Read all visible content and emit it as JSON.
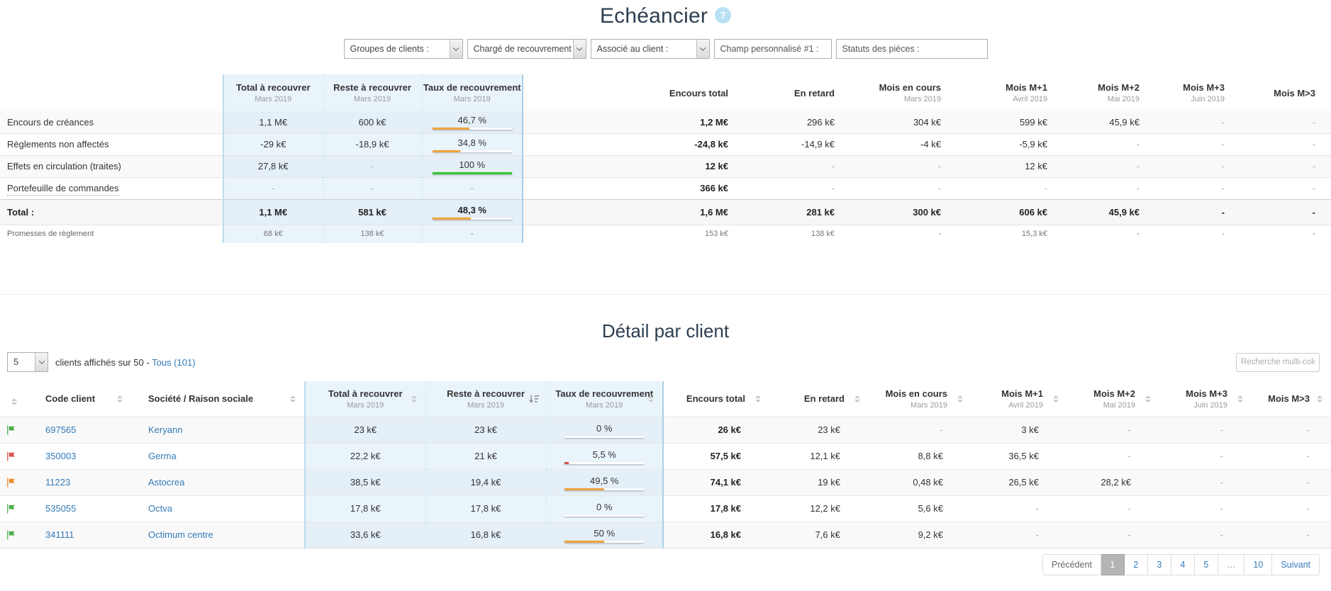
{
  "hdr": {
    "title": "Echéancier",
    "help": "?"
  },
  "filters": {
    "groupes_label": "Groupes de clients :",
    "charge_label": "Chargé de recouvrement :",
    "associe_label": "Associé au client :",
    "champ_placeholder": "Champ personnalisé #1 :",
    "statuts_placeholder": "Statuts des pièces :"
  },
  "colors": {
    "accent_blue": "#337ab7",
    "zone_blue": "#eaf4fb",
    "orange": "#f0a23c",
    "green": "#31c831",
    "red": "#d9534f"
  },
  "sum": {
    "columns": [
      {
        "label": "Total à recouvrer",
        "sub": "Mars 2019"
      },
      {
        "label": "Reste à recouvrer",
        "sub": "Mars 2019"
      },
      {
        "label": "Taux de recouvrement",
        "sub": "Mars 2019"
      },
      {
        "label": "Encours total",
        "sub": ""
      },
      {
        "label": "En retard",
        "sub": ""
      },
      {
        "label": "Mois en cours",
        "sub": "Mars 2019"
      },
      {
        "label": "Mois M+1",
        "sub": "Avril 2019"
      },
      {
        "label": "Mois M+2",
        "sub": "Mai 2019"
      },
      {
        "label": "Mois M+3",
        "sub": "Juin 2019"
      },
      {
        "label": "Mois M>3",
        "sub": ""
      }
    ],
    "rows": [
      {
        "label": "Encours de créances",
        "total": "1,1 M€",
        "reste": "600 k€",
        "taux": "46,7 %",
        "taux_pct": 46.7,
        "taux_color": "#f0a23c",
        "encours": "1,2 M€",
        "retard": "296 k€",
        "m0": "304 k€",
        "m1": "599 k€",
        "m2": "45,9 k€",
        "m3": "-",
        "m4": "-"
      },
      {
        "label": "Règlements non affectés",
        "total": "-29 k€",
        "reste": "-18,9 k€",
        "taux": "34,8 %",
        "taux_pct": 34.8,
        "taux_color": "#f0a23c",
        "encours": "-24,8 k€",
        "retard": "-14,9 k€",
        "m0": "-4 k€",
        "m1": "-5,9 k€",
        "m2": "-",
        "m3": "-",
        "m4": "-"
      },
      {
        "label": "Effets en circulation (traites)",
        "total": "27,8 k€",
        "reste": "-",
        "taux": "100 %",
        "taux_pct": 100,
        "taux_color": "#31c831",
        "encours": "12 k€",
        "retard": "-",
        "m0": "-",
        "m1": "12 k€",
        "m2": "-",
        "m3": "-",
        "m4": "-"
      },
      {
        "label": "Portefeuille de commandes",
        "total": "-",
        "reste": "-",
        "taux": "-",
        "encours": "366 k€",
        "retard": "-",
        "m0": "-",
        "m1": "-",
        "m2": "-",
        "m3": "-",
        "m4": "-"
      }
    ],
    "total_row": {
      "label": "Total :",
      "total": "1,1 M€",
      "reste": "581 k€",
      "taux": "48,3 %",
      "taux_pct": 48.3,
      "taux_color": "#f0a23c",
      "encours": "1,6 M€",
      "retard": "281 k€",
      "m0": "300 k€",
      "m1": "606 k€",
      "m2": "45,9 k€",
      "m3": "-",
      "m4": "-"
    },
    "promesses_row": {
      "label": "Promesses de règlement",
      "total": "68 k€",
      "reste": "138 k€",
      "taux": "-",
      "encours": "153 k€",
      "retard": "138 k€",
      "m0": "-",
      "m1": "15,3 k€",
      "m2": "-",
      "m3": "-",
      "m4": "-"
    }
  },
  "det": {
    "title": "Détail par client",
    "page_size": "5",
    "shown_prefix": "clients affichés sur 50 -",
    "all_link": "Tous (101)",
    "search_placeholder": "Recherche multi-colonnes",
    "columns": [
      {
        "label": "Code client",
        "sub": ""
      },
      {
        "label": "Société / Raison sociale",
        "sub": ""
      },
      {
        "label": "Total à recouvrer",
        "sub": "Mars 2019"
      },
      {
        "label": "Reste à recouvrer",
        "sub": "Mars 2019"
      },
      {
        "label": "Taux de recouvrement",
        "sub": "Mars 2019"
      },
      {
        "label": "Encours total",
        "sub": ""
      },
      {
        "label": "En retard",
        "sub": ""
      },
      {
        "label": "Mois en cours",
        "sub": "Mars 2019"
      },
      {
        "label": "Mois M+1",
        "sub": "Avril 2019"
      },
      {
        "label": "Mois M+2",
        "sub": "Mai 2019"
      },
      {
        "label": "Mois M+3",
        "sub": "Juin 2019"
      },
      {
        "label": "Mois M>3",
        "sub": ""
      }
    ],
    "rows": [
      {
        "flag_color": "#4cae4c",
        "code": "697565",
        "name": "Keryann",
        "total": "23 k€",
        "reste": "23 k€",
        "taux": "0 %",
        "taux_pct": 0,
        "taux_color": "#f0a23c",
        "encours": "26 k€",
        "retard": "23 k€",
        "m0": "-",
        "m1": "3 k€",
        "m2": "-",
        "m3": "-",
        "m4": "-"
      },
      {
        "flag_color": "#d9534f",
        "code": "350003",
        "name": "Germa",
        "total": "22,2 k€",
        "reste": "21 k€",
        "taux": "5,5 %",
        "taux_pct": 5.5,
        "taux_color": "#d9534f",
        "encours": "57,5 k€",
        "retard": "12,1 k€",
        "m0": "8,8 k€",
        "m1": "36,5 k€",
        "m2": "-",
        "m3": "-",
        "m4": "-"
      },
      {
        "flag_color": "#ed8b2d",
        "code": "11223",
        "name": "Astocrea",
        "total": "38,5 k€",
        "reste": "19,4 k€",
        "taux": "49,5 %",
        "taux_pct": 49.5,
        "taux_color": "#f0a23c",
        "encours": "74,1 k€",
        "retard": "19 k€",
        "m0": "0,48 k€",
        "m1": "26,5 k€",
        "m2": "28,2 k€",
        "m3": "-",
        "m4": "-"
      },
      {
        "flag_color": "#4cae4c",
        "code": "535055",
        "name": "Octva",
        "total": "17,8 k€",
        "reste": "17,8 k€",
        "taux": "0 %",
        "taux_pct": 0,
        "taux_color": "#f0a23c",
        "encours": "17,8 k€",
        "retard": "12,2 k€",
        "m0": "5,6 k€",
        "m1": "-",
        "m2": "-",
        "m3": "-",
        "m4": "-"
      },
      {
        "flag_color": "#4cae4c",
        "code": "341111",
        "name": "Octimum centre",
        "total": "33,6 k€",
        "reste": "16,8 k€",
        "taux": "50 %",
        "taux_pct": 50,
        "taux_color": "#f0a23c",
        "encours": "16,8 k€",
        "retard": "7,6 k€",
        "m0": "9,2 k€",
        "m1": "-",
        "m2": "-",
        "m3": "-",
        "m4": "-"
      }
    ],
    "pagination": {
      "prev": "Précédent",
      "p1": "1",
      "p2": "2",
      "p3": "3",
      "p4": "4",
      "p5": "5",
      "ellipsis": "…",
      "p10": "10",
      "next": "Suivant"
    }
  }
}
